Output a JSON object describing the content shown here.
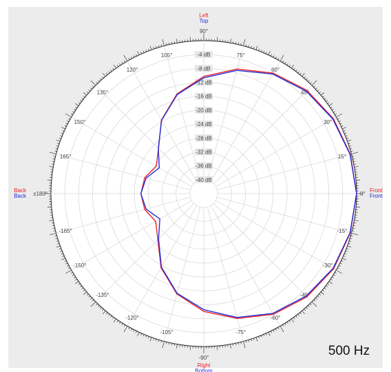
{
  "chart_data": {
    "type": "polar",
    "frequency_label": "500 Hz",
    "radial_unit": "dB",
    "radial_ticks": [
      -4,
      -8,
      -12,
      -16,
      -20,
      -24,
      -28,
      -32,
      -36,
      -40
    ],
    "radial_tick_labels": [
      "-4 dB",
      "-8 dB",
      "-12 dB",
      "-16 dB",
      "-20 dB",
      "-24 dB",
      "-28 dB",
      "-32 dB",
      "-36 dB",
      "-40 dB"
    ],
    "rlim": [
      -44,
      0
    ],
    "angle_ticks": [
      0,
      15,
      30,
      45,
      60,
      75,
      90,
      105,
      120,
      135,
      150,
      165,
      180,
      -165,
      -150,
      -135,
      -120,
      -105,
      -90,
      -75,
      -60,
      -45,
      -30,
      -15
    ],
    "angle_tick_labels": [
      "0°",
      "15°",
      "30°",
      "45°",
      "60°",
      "75°",
      "90°",
      "105°",
      "120°",
      "135°",
      "150°",
      "165°",
      "±180°",
      "-165°",
      "-150°",
      "-135°",
      "-120°",
      "-105°",
      "-90°",
      "-75°",
      "-60°",
      "-45°",
      "-30°",
      "-15°"
    ],
    "grid": true,
    "direction_labels": {
      "right": [
        {
          "text": "Front",
          "series": "red"
        },
        {
          "text": "Front",
          "series": "blue"
        }
      ],
      "left": [
        {
          "text": "Back",
          "series": "red"
        },
        {
          "text": "Back",
          "series": "blue"
        }
      ],
      "top": [
        {
          "text": "Left",
          "series": "red"
        },
        {
          "text": "Top",
          "series": "blue"
        }
      ],
      "bottom": [
        {
          "text": "Right",
          "series": "red"
        },
        {
          "text": "Bottom",
          "series": "blue"
        }
      ]
    },
    "angles": [
      0,
      15,
      30,
      45,
      60,
      75,
      90,
      105,
      120,
      135,
      150,
      165,
      180,
      -165,
      -150,
      -135,
      -120,
      -105,
      -90,
      -75,
      -60,
      -45,
      -30,
      -15
    ],
    "series": [
      {
        "color": "#e8202a",
        "values": [
          0.0,
          -0.3,
          -0.9,
          -2.0,
          -4.0,
          -6.9,
          -10.3,
          -14.3,
          -19.6,
          -25.6,
          -28.2,
          -26.4,
          -25.9,
          -26.4,
          -28.0,
          -25.3,
          -19.4,
          -14.1,
          -10.1,
          -6.8,
          -3.9,
          -2.0,
          -0.8,
          -0.3
        ]
      },
      {
        "color": "#2030d8",
        "values": [
          0.0,
          -0.4,
          -1.1,
          -2.3,
          -4.3,
          -7.3,
          -10.7,
          -14.5,
          -19.7,
          -25.5,
          -29.2,
          -26.8,
          -25.9,
          -26.8,
          -29.4,
          -25.6,
          -19.6,
          -14.3,
          -10.6,
          -7.1,
          -4.2,
          -2.3,
          -1.0,
          -0.4
        ]
      }
    ]
  }
}
